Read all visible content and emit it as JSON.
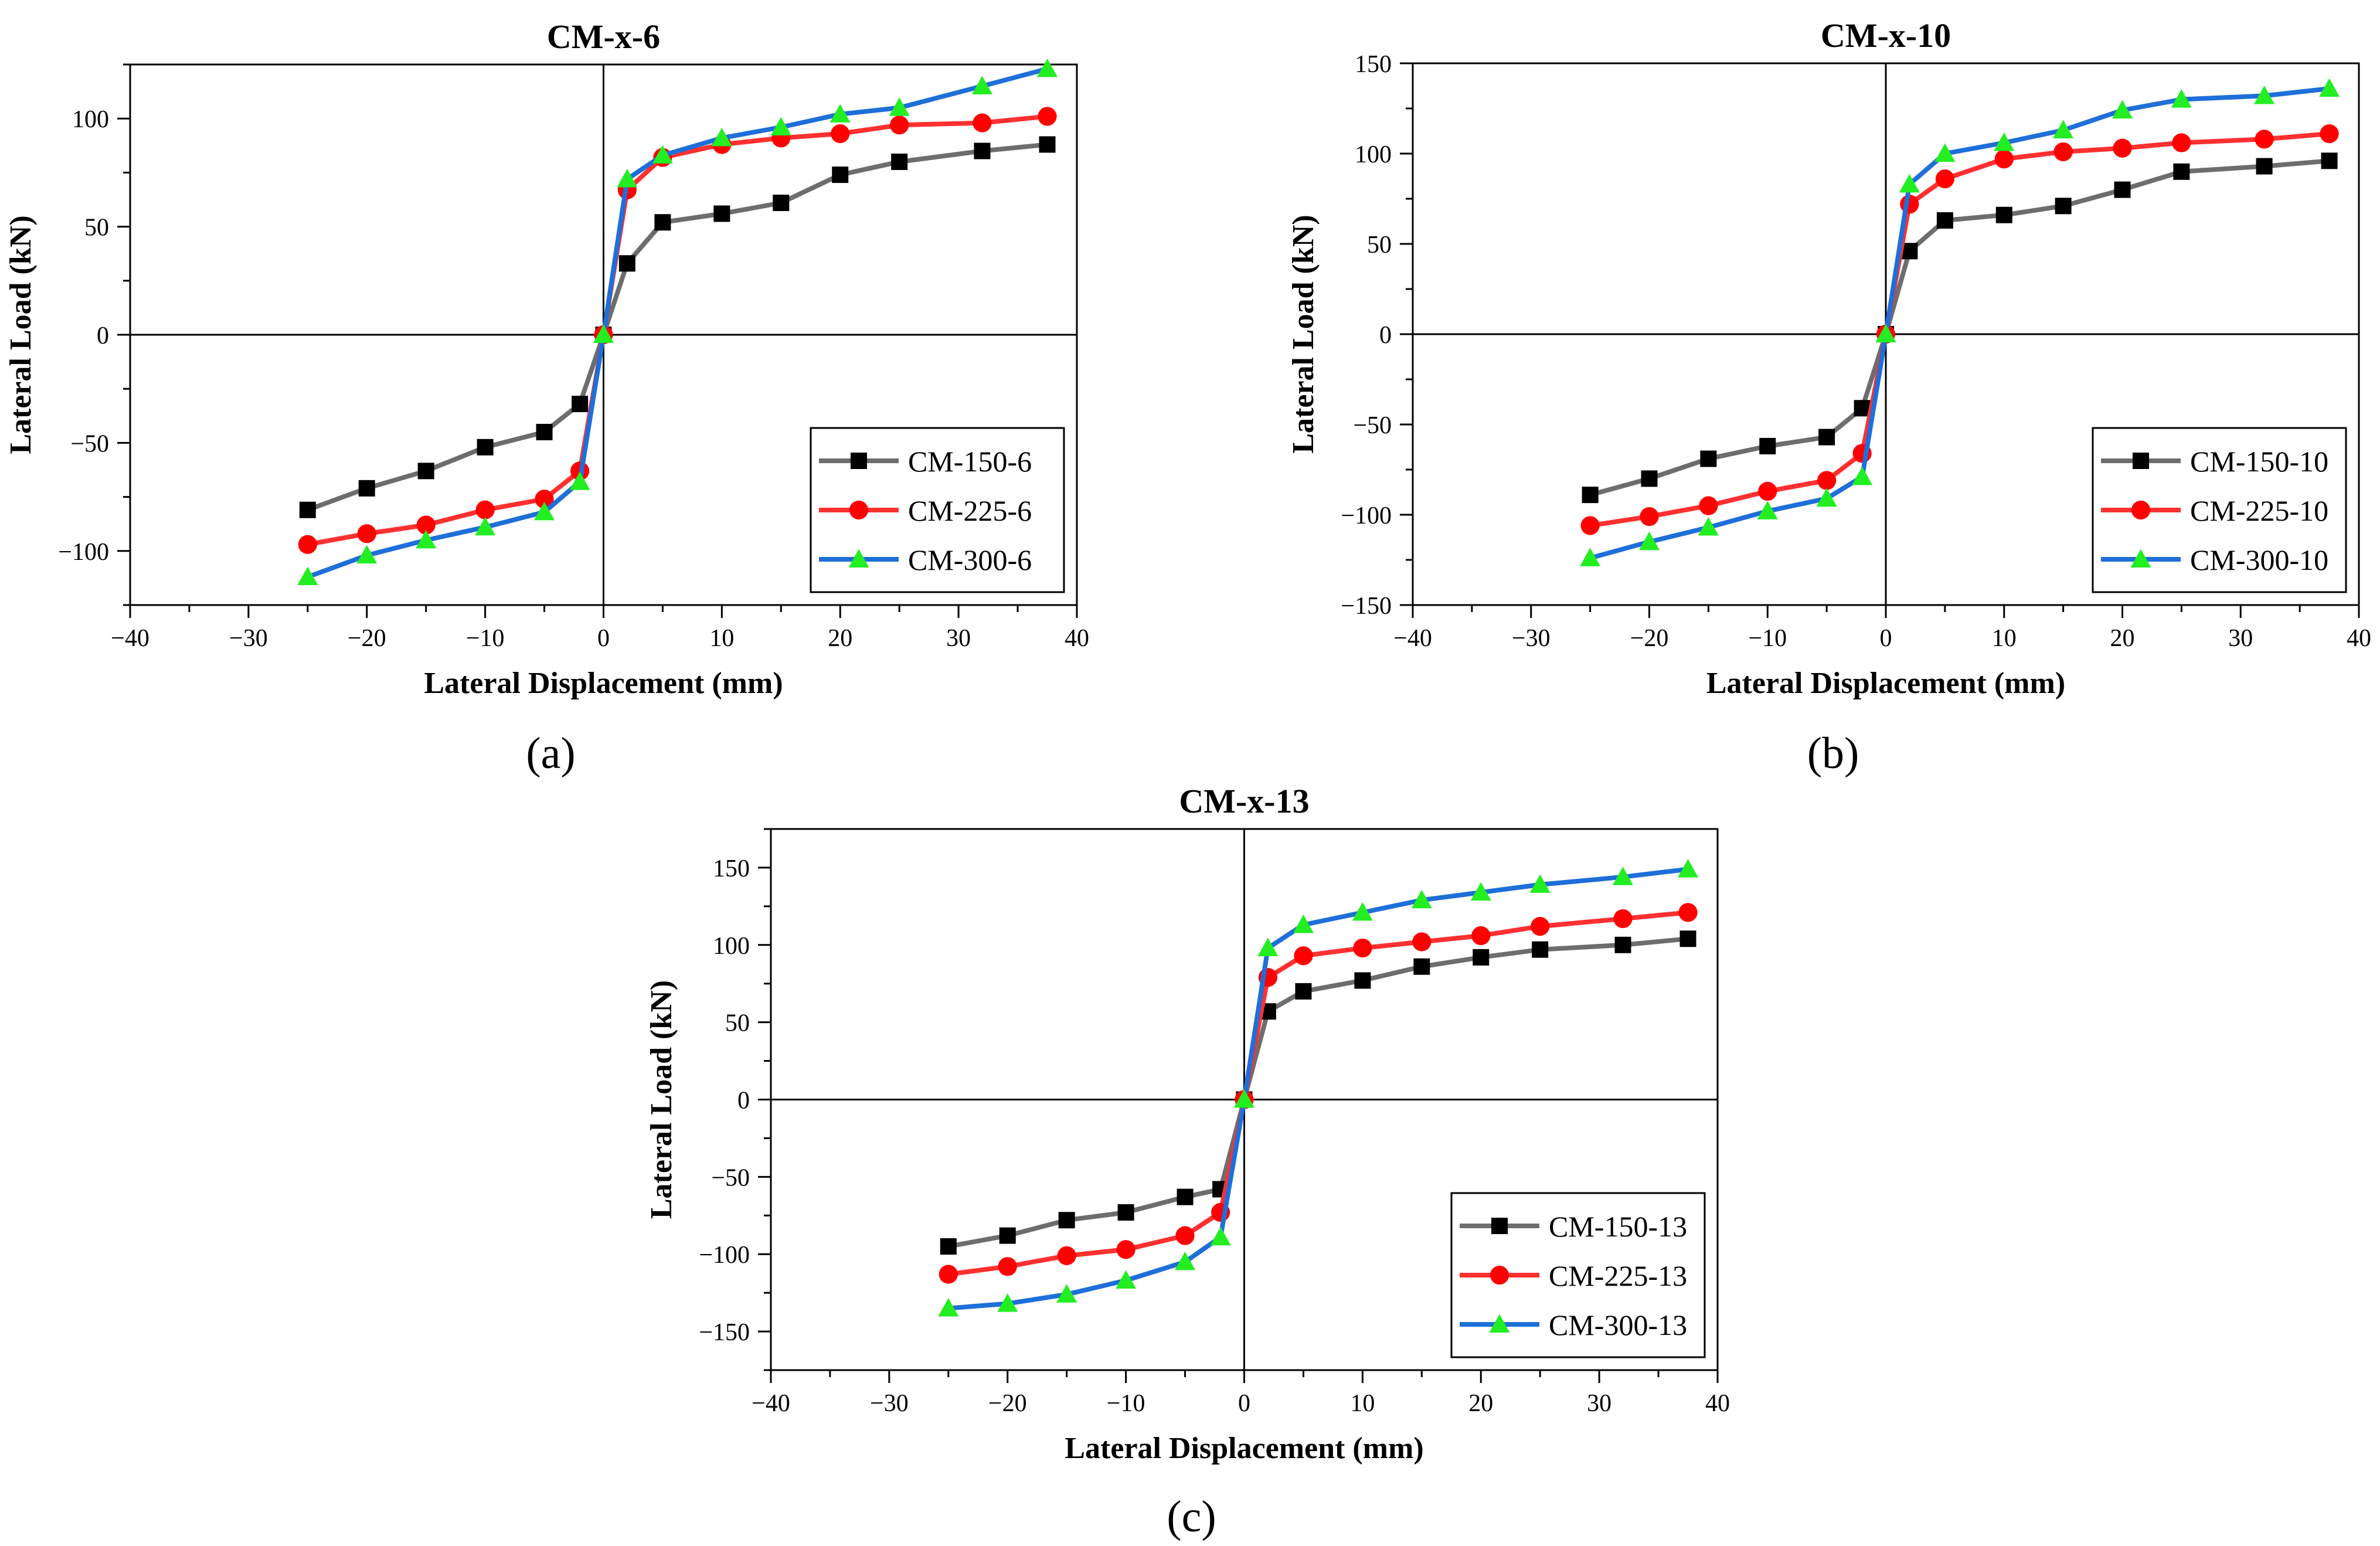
{
  "chart_data": [
    {
      "type": "line",
      "panel_label": "(a)",
      "title": "CM-x-6",
      "xlabel": "Lateral Displacement (mm)",
      "ylabel": "Lateral Load (kN)",
      "xlim": [
        -40,
        40
      ],
      "ylim": [
        -125,
        125
      ],
      "xticks": [
        -40,
        -30,
        -20,
        -10,
        0,
        10,
        20,
        30,
        40
      ],
      "yticks": [
        -100,
        -50,
        0,
        50,
        100
      ],
      "legend_position": "bottom-right",
      "x": [
        -25,
        -20,
        -15,
        -10,
        -5,
        -2,
        0,
        2,
        5,
        10,
        15,
        20,
        25,
        32,
        37.5
      ],
      "series": [
        {
          "name": "CM-150-6",
          "color": "#6d6d6d",
          "marker": "square",
          "marker_color": "#000000",
          "values": [
            -81,
            -71,
            -63,
            -52,
            -45,
            -32,
            0,
            33,
            52,
            56,
            61,
            74,
            80,
            85,
            88
          ]
        },
        {
          "name": "CM-225-6",
          "color": "#ff3030",
          "marker": "circle",
          "marker_color": "#ff0000",
          "values": [
            -97,
            -92,
            -88,
            -81,
            -76,
            -63,
            0,
            67,
            82,
            88,
            91,
            93,
            97,
            98,
            101
          ]
        },
        {
          "name": "CM-300-6",
          "color": "#1e6fd9",
          "marker": "triangle",
          "marker_color": "#22ee22",
          "values": [
            -112,
            -102,
            -95,
            -89,
            -82,
            -68,
            0,
            72,
            83,
            91,
            96,
            102,
            105,
            115,
            123
          ]
        }
      ]
    },
    {
      "type": "line",
      "panel_label": "(b)",
      "title": "CM-x-10",
      "xlabel": "Lateral Displacement (mm)",
      "ylabel": "Lateral Load (kN)",
      "xlim": [
        -40,
        40
      ],
      "ylim": [
        -150,
        150
      ],
      "xticks": [
        -40,
        -30,
        -20,
        -10,
        0,
        10,
        20,
        30,
        40
      ],
      "yticks": [
        -150,
        -100,
        -50,
        0,
        50,
        100,
        150
      ],
      "legend_position": "bottom-right",
      "x": [
        -25,
        -20,
        -15,
        -10,
        -5,
        -2,
        0,
        2,
        5,
        10,
        15,
        20,
        25,
        32,
        37.5
      ],
      "series": [
        {
          "name": "CM-150-10",
          "color": "#6d6d6d",
          "marker": "square",
          "marker_color": "#000000",
          "values": [
            -89,
            -80,
            -69,
            -62,
            -57,
            -41,
            0,
            46,
            63,
            66,
            71,
            80,
            90,
            93,
            96
          ]
        },
        {
          "name": "CM-225-10",
          "color": "#ff3030",
          "marker": "circle",
          "marker_color": "#ff0000",
          "values": [
            -106,
            -101,
            -95,
            -87,
            -81,
            -66,
            0,
            72,
            86,
            97,
            101,
            103,
            106,
            108,
            111
          ]
        },
        {
          "name": "CM-300-10",
          "color": "#1e6fd9",
          "marker": "triangle",
          "marker_color": "#22ee22",
          "values": [
            -124,
            -115,
            -107,
            -98,
            -91,
            -79,
            0,
            83,
            100,
            106,
            113,
            124,
            130,
            132,
            136
          ]
        }
      ]
    },
    {
      "type": "line",
      "panel_label": "(c)",
      "title": "CM-x-13",
      "xlabel": "Lateral Displacement (mm)",
      "ylabel": "Lateral Load (kN)",
      "xlim": [
        -40,
        40
      ],
      "ylim": [
        -175,
        175
      ],
      "xticks": [
        -40,
        -30,
        -20,
        -10,
        0,
        10,
        20,
        30,
        40
      ],
      "yticks": [
        -150,
        -100,
        -50,
        0,
        50,
        100,
        150
      ],
      "legend_position": "bottom-right",
      "x": [
        -25,
        -20,
        -15,
        -10,
        -5,
        -2,
        0,
        2,
        5,
        10,
        15,
        20,
        25,
        32,
        37.5
      ],
      "series": [
        {
          "name": "CM-150-13",
          "color": "#6d6d6d",
          "marker": "square",
          "marker_color": "#000000",
          "values": [
            -95,
            -88,
            -78,
            -73,
            -63,
            -58,
            0,
            57,
            70,
            77,
            86,
            92,
            97,
            100,
            104
          ]
        },
        {
          "name": "CM-225-13",
          "color": "#ff3030",
          "marker": "circle",
          "marker_color": "#ff0000",
          "values": [
            -113,
            -108,
            -101,
            -97,
            -88,
            -73,
            0,
            79,
            93,
            98,
            102,
            106,
            112,
            117,
            121
          ]
        },
        {
          "name": "CM-300-13",
          "color": "#1e6fd9",
          "marker": "triangle",
          "marker_color": "#22ee22",
          "values": [
            -135,
            -132,
            -126,
            -117,
            -105,
            -89,
            0,
            98,
            113,
            121,
            129,
            134,
            139,
            144,
            149
          ]
        }
      ]
    }
  ]
}
